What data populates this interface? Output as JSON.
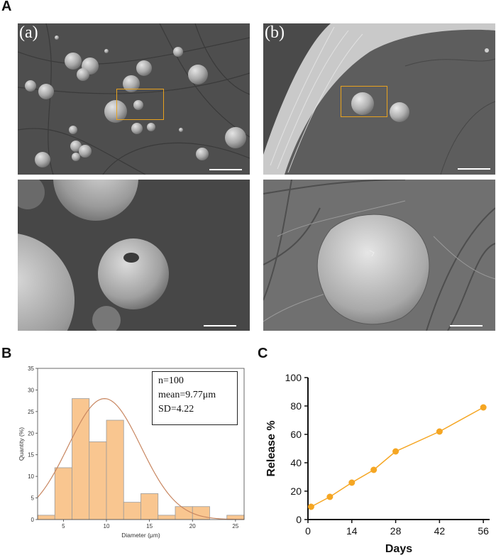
{
  "figure": {
    "panel_a_label": "A",
    "panel_b_label": "B",
    "panel_c_label": "C",
    "sem_labels": {
      "a": "(a)",
      "b": "(b)"
    },
    "accent_color": "#e8a21e"
  },
  "histogram_stats": {
    "n": "n=100",
    "mean": "mean=9.77μm",
    "sd": "SD=4.22"
  },
  "chart_data": [
    {
      "type": "bar",
      "subtype": "histogram",
      "title": "",
      "xlabel": "Diameter (μm)",
      "ylabel": "Quantity (%)",
      "xlim": [
        2,
        26
      ],
      "ylim": [
        0,
        35
      ],
      "bin_width": 2,
      "bin_starts": [
        2,
        4,
        6,
        8,
        10,
        12,
        14,
        16,
        18,
        20,
        22,
        24
      ],
      "values": [
        1,
        12,
        28,
        18,
        23,
        4,
        6,
        1,
        3,
        3,
        0,
        1
      ],
      "x_ticks": [
        5,
        10,
        15,
        20,
        25
      ],
      "y_ticks": [
        0,
        5,
        10,
        15,
        20,
        25,
        30,
        35
      ],
      "fit": {
        "type": "normal",
        "mean": 9.77,
        "sd": 4.22,
        "peak": 28
      },
      "bar_color": "#f9c690",
      "bar_edge_color": "#9b9b9b",
      "fit_color": "#c88660",
      "grid": false
    },
    {
      "type": "line",
      "title": "",
      "xlabel": "Days",
      "ylabel": "Release %",
      "x": [
        1,
        7,
        14,
        21,
        28,
        42,
        56
      ],
      "y": [
        9,
        16,
        26,
        35,
        48,
        62,
        79
      ],
      "x_ticks": [
        0,
        14,
        28,
        42,
        56
      ],
      "y_ticks": [
        0,
        20,
        40,
        60,
        80,
        100
      ],
      "xlim": [
        0,
        58
      ],
      "ylim": [
        0,
        100
      ],
      "color": "#f5a623",
      "grid": false
    }
  ]
}
